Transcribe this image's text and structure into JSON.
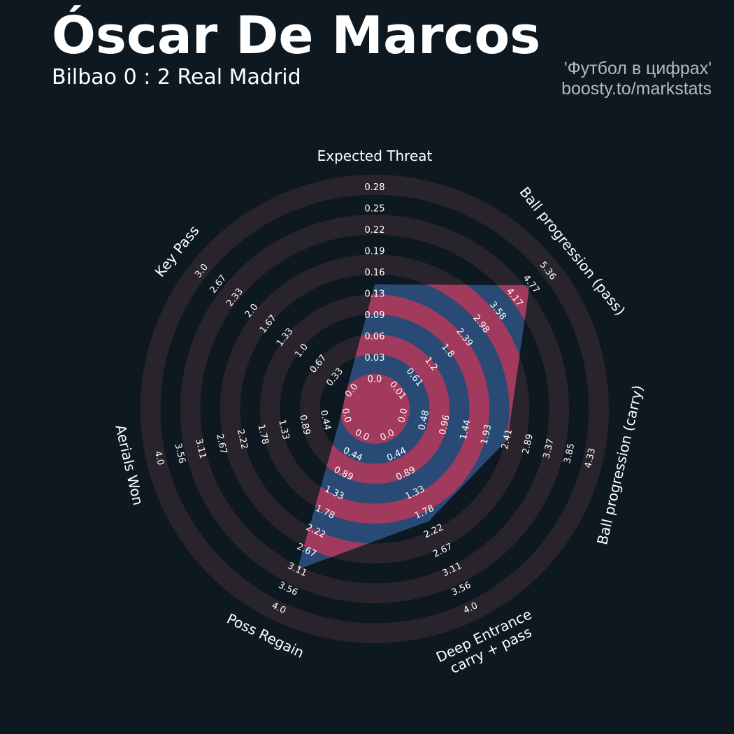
{
  "header": {
    "title": "Óscar De Marcos",
    "subtitle": "Bilbao 0 : 2 Real Madrid",
    "credit_line1": "'Футбол в цифрах'",
    "credit_line2": "boosty.to/markstats"
  },
  "colors": {
    "background": "#0e1820",
    "ring_band": "#29242b",
    "polygon_blue": "#284a75",
    "polygon_pink": "#a23a5e",
    "text": "#ffffff",
    "credit_text": "#b5babf"
  },
  "chart_data": {
    "type": "radar",
    "title": "Óscar De Marcos",
    "subtitle": "Bilbao 0 : 2 Real Madrid",
    "parameters": [
      {
        "name": "Expected Threat",
        "lines": [
          "Expected Threat"
        ],
        "ticks": [
          "0.0",
          "0.03",
          "0.06",
          "0.09",
          "0.13",
          "0.16",
          "0.19",
          "0.22",
          "0.25",
          "0.28"
        ],
        "value": 0.14
      },
      {
        "name": "Ball progression (pass)",
        "lines": [
          "Ball progression (pass)"
        ],
        "ticks": [
          "0.01",
          "0.61",
          "1.2",
          "1.8",
          "2.39",
          "2.98",
          "3.58",
          "4.17",
          "4.77",
          "5.36"
        ],
        "value": 4.88
      },
      {
        "name": "Ball progression (carry)",
        "lines": [
          "Ball progression (carry)"
        ],
        "ticks": [
          "0.0",
          "0.48",
          "0.96",
          "1.44",
          "1.93",
          "2.41",
          "2.89",
          "3.37",
          "3.85",
          "4.33"
        ],
        "value": 2.45
      },
      {
        "name": "Deep Entrance carry + pass",
        "lines": [
          "Deep Entrance",
          "carry + pass"
        ],
        "ticks": [
          "0.0",
          "0.44",
          "0.89",
          "1.33",
          "1.78",
          "2.22",
          "2.67",
          "3.11",
          "3.56",
          "4.0"
        ],
        "value": 2.0
      },
      {
        "name": "Poss Regain",
        "lines": [
          "Poss Regain"
        ],
        "ticks": [
          "0.0",
          "0.44",
          "0.89",
          "1.33",
          "1.78",
          "2.22",
          "2.67",
          "3.11",
          "3.56",
          "4.0"
        ],
        "value": 3.2
      },
      {
        "name": "Aerials Won",
        "lines": [
          "Aerials Won"
        ],
        "ticks": [
          "0.0",
          "0.44",
          "0.89",
          "1.33",
          "1.78",
          "2.22",
          "2.67",
          "3.11",
          "3.56",
          "4.0"
        ],
        "value": 0.0
      },
      {
        "name": "Key Pass",
        "lines": [
          "Key Pass"
        ],
        "ticks": [
          "0.0",
          "0.33",
          "0.67",
          "1.0",
          "1.33",
          "1.67",
          "2.0",
          "2.33",
          "2.67",
          "3.0"
        ],
        "value": 0.0
      }
    ]
  }
}
